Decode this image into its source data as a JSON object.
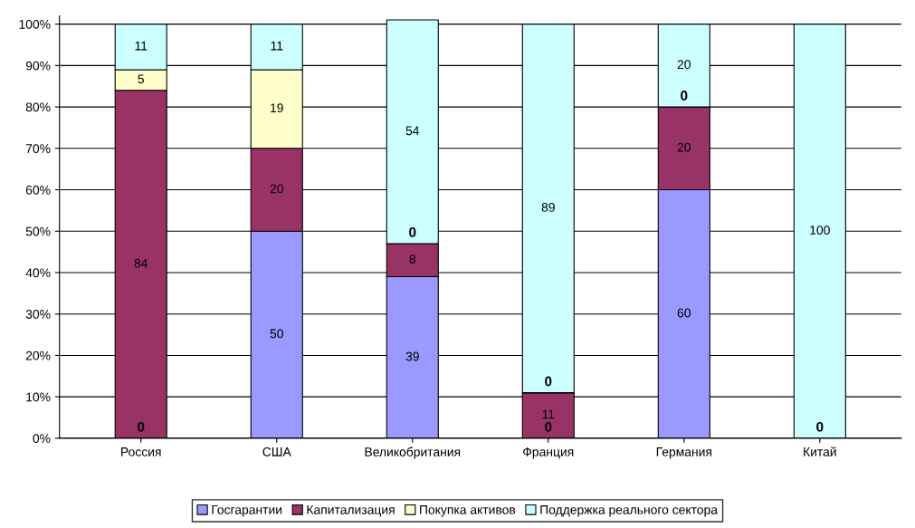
{
  "chart_data": {
    "type": "bar",
    "stacked": true,
    "categories": [
      "Россия",
      "США",
      "Великобритания",
      "Франция",
      "Германия",
      "Китай"
    ],
    "series": [
      {
        "name": "Госгарантии",
        "color": "#9999ff",
        "values": [
          0,
          50,
          39,
          0,
          60,
          0
        ],
        "value_labels": [
          null,
          "50",
          "39",
          null,
          "60",
          null
        ]
      },
      {
        "name": "Капитализация",
        "color": "#993366",
        "values": [
          84,
          20,
          8,
          11,
          20,
          0
        ],
        "value_labels": [
          "84",
          "20",
          "8",
          "11",
          "20",
          null
        ]
      },
      {
        "name": "Покупка активов",
        "color": "#ffffcc",
        "values": [
          5,
          19,
          0,
          0,
          0,
          0
        ],
        "value_labels": [
          "5",
          "19",
          null,
          null,
          null,
          null
        ]
      },
      {
        "name": "Поддержка реального сектора",
        "color": "#ccffff",
        "values": [
          11,
          11,
          54,
          89,
          20,
          100
        ],
        "value_labels": [
          "11",
          "11",
          "54",
          "89",
          "20",
          "100"
        ]
      }
    ],
    "annotations": [
      {
        "text": "0",
        "x": "Россия",
        "y": 0
      },
      {
        "text": "0",
        "x": "Великобритания",
        "y": 47
      },
      {
        "text": "0",
        "x": "Франция",
        "y": 0
      },
      {
        "text": "0",
        "x": "Франция",
        "y": 11
      },
      {
        "text": "0",
        "x": "Германия",
        "y": 80
      },
      {
        "text": "0",
        "x": "Китай",
        "y": 0
      }
    ],
    "ylim": [
      0,
      102
    ],
    "yticks": [
      {
        "value": 0,
        "label": "0%"
      },
      {
        "value": 10,
        "label": "10%"
      },
      {
        "value": 20,
        "label": "20%"
      },
      {
        "value": 30,
        "label": "30%"
      },
      {
        "value": 40,
        "label": "40%"
      },
      {
        "value": 50,
        "label": "50%"
      },
      {
        "value": 60,
        "label": "60%"
      },
      {
        "value": 70,
        "label": "70%"
      },
      {
        "value": 80,
        "label": "80%"
      },
      {
        "value": 90,
        "label": "90%"
      },
      {
        "value": 100,
        "label": "100%"
      }
    ],
    "grid": "y",
    "legend": "bottom"
  }
}
